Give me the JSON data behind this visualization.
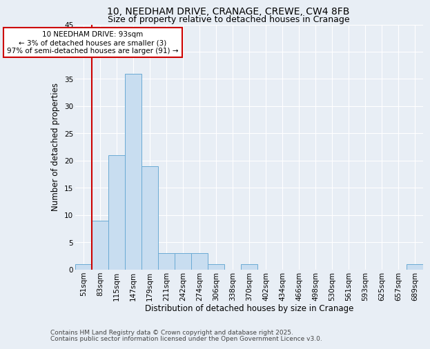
{
  "title_line1": "10, NEEDHAM DRIVE, CRANAGE, CREWE, CW4 8FB",
  "title_line2": "Size of property relative to detached houses in Cranage",
  "xlabel": "Distribution of detached houses by size in Cranage",
  "ylabel": "Number of detached properties",
  "categories": [
    "51sqm",
    "83sqm",
    "115sqm",
    "147sqm",
    "179sqm",
    "211sqm",
    "242sqm",
    "274sqm",
    "306sqm",
    "338sqm",
    "370sqm",
    "402sqm",
    "434sqm",
    "466sqm",
    "498sqm",
    "530sqm",
    "561sqm",
    "593sqm",
    "625sqm",
    "657sqm",
    "689sqm"
  ],
  "values": [
    1,
    9,
    21,
    36,
    19,
    3,
    3,
    3,
    1,
    0,
    1,
    0,
    0,
    0,
    0,
    0,
    0,
    0,
    0,
    0,
    1
  ],
  "bar_color": "#c8ddf0",
  "bar_edge_color": "#6aaad4",
  "background_color": "#e8eef5",
  "grid_color": "#ffffff",
  "vline_color": "#cc0000",
  "annotation_text": "10 NEEDHAM DRIVE: 93sqm\n← 3% of detached houses are smaller (3)\n97% of semi-detached houses are larger (91) →",
  "annotation_box_color": "#ffffff",
  "annotation_box_edge_color": "#cc0000",
  "ylim": [
    0,
    45
  ],
  "yticks": [
    0,
    5,
    10,
    15,
    20,
    25,
    30,
    35,
    40,
    45
  ],
  "footer_line1": "Contains HM Land Registry data © Crown copyright and database right 2025.",
  "footer_line2": "Contains public sector information licensed under the Open Government Licence v3.0.",
  "title_fontsize": 10,
  "subtitle_fontsize": 9,
  "axis_label_fontsize": 8.5,
  "tick_fontsize": 7.5,
  "annotation_fontsize": 7.5,
  "footer_fontsize": 6.5
}
